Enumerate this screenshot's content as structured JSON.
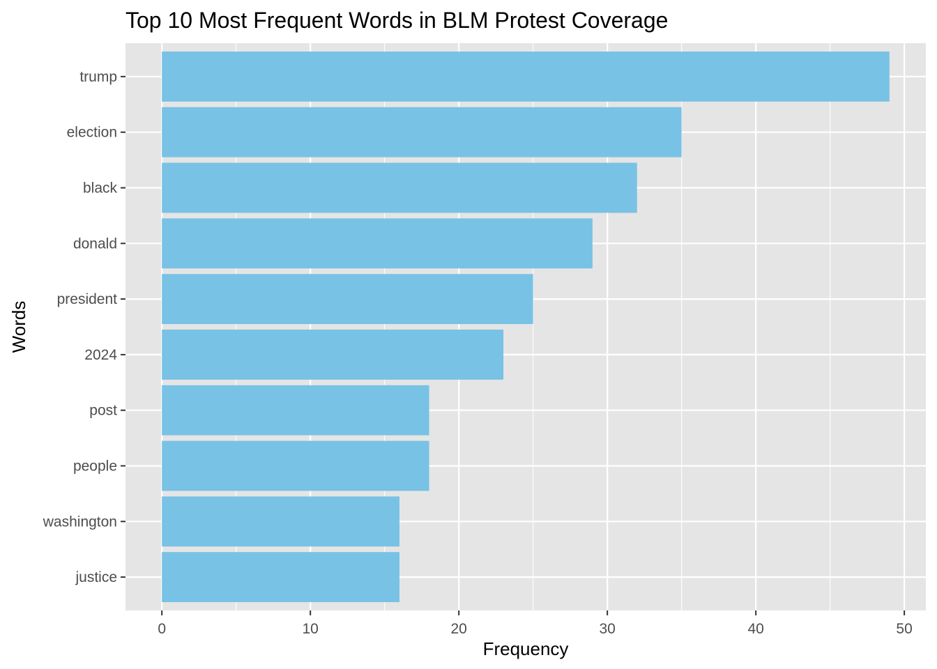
{
  "chart_data": {
    "type": "bar",
    "orientation": "horizontal",
    "title": "Top 10 Most Frequent Words in BLM Protest Coverage",
    "xlabel": "Frequency",
    "ylabel": "Words",
    "categories": [
      "trump",
      "election",
      "black",
      "donald",
      "president",
      "2024",
      "post",
      "people",
      "washington",
      "justice"
    ],
    "values": [
      49,
      35,
      32,
      29,
      25,
      23,
      18,
      18,
      16,
      16
    ],
    "xlim": [
      -2.45,
      51.45
    ],
    "xticks": [
      0,
      10,
      20,
      30,
      40,
      50
    ],
    "x_minor_ticks": [
      5,
      15,
      25,
      35,
      45
    ],
    "grid": true,
    "legend": "none",
    "colors": {
      "bar": "#78c2e5",
      "panel": "#e5e5e5",
      "grid": "#ffffff"
    }
  }
}
